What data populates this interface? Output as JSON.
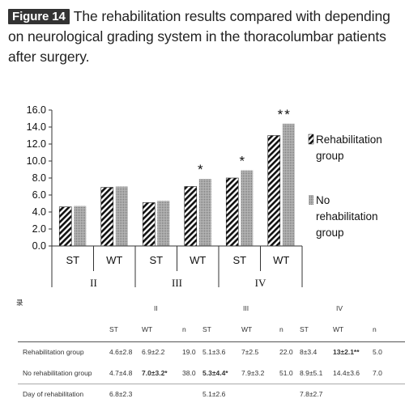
{
  "caption": {
    "badge": "Figure 14",
    "text": "The rehabilitation results compared with depending on neurological grading system in the thoracolumbar patients after surgery."
  },
  "chart_data": {
    "type": "bar",
    "ylim": [
      0,
      16
    ],
    "yticks": [
      "0.0",
      "2.0",
      "4.0",
      "6.0",
      "8.0",
      "10.0",
      "12.0",
      "14.0",
      "16.0"
    ],
    "groups": [
      {
        "label": "II",
        "categories": [
          "ST",
          "WT"
        ]
      },
      {
        "label": "III",
        "categories": [
          "ST",
          "WT"
        ]
      },
      {
        "label": "IV",
        "categories": [
          "ST",
          "WT"
        ]
      }
    ],
    "categories": [
      "ST",
      "WT",
      "ST",
      "WT",
      "ST",
      "WT"
    ],
    "series": [
      {
        "name": "Rehabilitation group",
        "pattern": "diagonal-stripes",
        "values": [
          4.6,
          6.9,
          5.1,
          7.0,
          8.0,
          13.0
        ]
      },
      {
        "name": "No rehabilitation group",
        "pattern": "dotted-gray",
        "values": [
          4.7,
          7.0,
          5.3,
          7.9,
          8.9,
          14.4
        ]
      }
    ],
    "annotations": [
      "",
      "",
      "",
      "*",
      "*",
      "**"
    ],
    "legend_position": "right",
    "grid": false
  },
  "table": {
    "corner_mark": "录",
    "groups": [
      "II",
      "III",
      "IV"
    ],
    "subheaders": [
      "ST",
      "WT",
      "n",
      "ST",
      "WT",
      "n",
      "ST",
      "WT",
      "n"
    ],
    "rows": [
      {
        "label": "Rehabilitation group",
        "cells": [
          "4.6±2.8",
          "6.9±2.2",
          "19.0",
          "5.1±3.6",
          "7±2.5",
          "22.0",
          "8±3.4",
          "13±2.1**",
          "5.0"
        ]
      },
      {
        "label": "No rehabilitation group",
        "cells": [
          "4.7±4.8",
          "7.0±3.2*",
          "38.0",
          "5.3±4.4*",
          "7.9±3.2",
          "51.0",
          "8.9±5.1",
          "14.4±3.6",
          "7.0"
        ]
      },
      {
        "label": "Day of rehabilitation",
        "cells": [
          "6.8±2.3",
          "",
          "",
          "5.1±2.6",
          "",
          "",
          "7.8±2.7",
          "",
          ""
        ]
      }
    ]
  }
}
